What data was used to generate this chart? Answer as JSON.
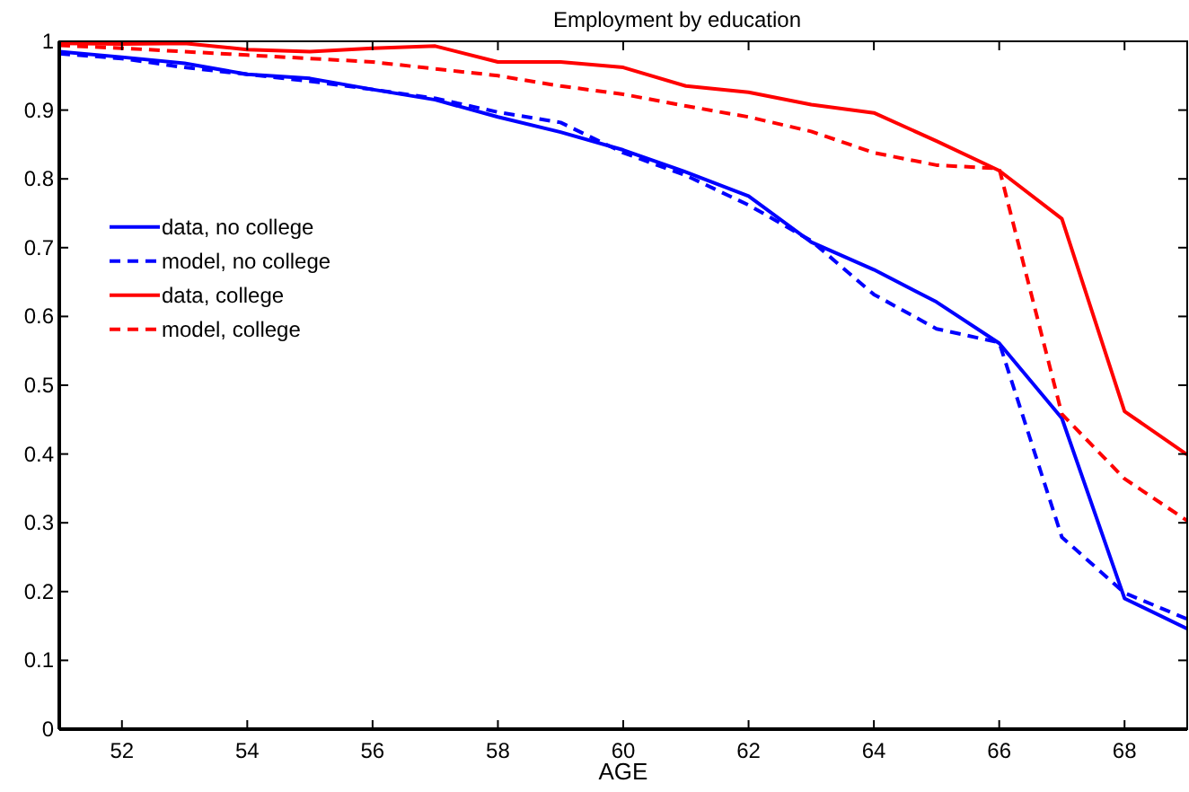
{
  "chart_data": {
    "type": "line",
    "title": "Employment by education",
    "xlabel": "AGE",
    "x": [
      51,
      52,
      53,
      54,
      55,
      56,
      57,
      58,
      59,
      60,
      61,
      62,
      63,
      64,
      65,
      66,
      67,
      68,
      69
    ],
    "xlim": [
      51,
      69
    ],
    "xticks": [
      52,
      54,
      56,
      58,
      60,
      62,
      64,
      66,
      68
    ],
    "ylim": [
      0,
      1
    ],
    "yticks": [
      0,
      0.1,
      0.2,
      0.3,
      0.4,
      0.5,
      0.6,
      0.7,
      0.8,
      0.9,
      1
    ],
    "grid": false,
    "legend": "left",
    "series": [
      {
        "name": "data, no college",
        "color": "#0000ff",
        "line_style": "solid",
        "values": [
          0.985,
          0.977,
          0.968,
          0.952,
          0.946,
          0.93,
          0.915,
          0.89,
          0.868,
          0.842,
          0.81,
          0.775,
          0.708,
          0.668,
          0.621,
          0.561,
          0.452,
          0.19,
          0.146
        ]
      },
      {
        "name": "model, no college",
        "color": "#0000ff",
        "line_style": "dashed",
        "values": [
          0.982,
          0.975,
          0.962,
          0.952,
          0.942,
          0.93,
          0.917,
          0.897,
          0.882,
          0.838,
          0.805,
          0.762,
          0.71,
          0.632,
          0.582,
          0.562,
          0.279,
          0.198,
          0.16
        ]
      },
      {
        "name": "data, college",
        "color": "#ff0000",
        "line_style": "solid",
        "values": [
          0.997,
          0.996,
          0.997,
          0.988,
          0.985,
          0.99,
          0.993,
          0.97,
          0.97,
          0.962,
          0.935,
          0.926,
          0.908,
          0.896,
          0.855,
          0.812,
          0.742,
          0.462,
          0.399
        ]
      },
      {
        "name": "model, college",
        "color": "#ff0000",
        "line_style": "dashed",
        "values": [
          0.994,
          0.99,
          0.985,
          0.98,
          0.975,
          0.97,
          0.96,
          0.95,
          0.935,
          0.923,
          0.906,
          0.89,
          0.869,
          0.838,
          0.82,
          0.815,
          0.458,
          0.364,
          0.303
        ]
      }
    ]
  }
}
